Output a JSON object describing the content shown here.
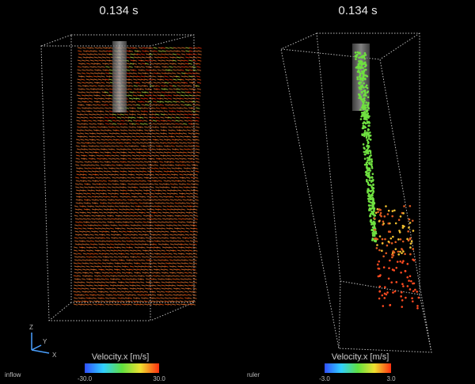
{
  "panels": [
    {
      "title": "0.134 s",
      "colorbar": {
        "label": "Velocity.x [m/s]",
        "min": "-30.0",
        "max": "30.0"
      },
      "corner_label": "inflow",
      "axes": {
        "z": "Z",
        "y": "Y",
        "x": "X"
      }
    },
    {
      "title": "0.134 s",
      "colorbar": {
        "label": "Velocity.x [m/s]",
        "min": "-3.0",
        "max": "3.0"
      },
      "corner_label": "ruler"
    }
  ]
}
